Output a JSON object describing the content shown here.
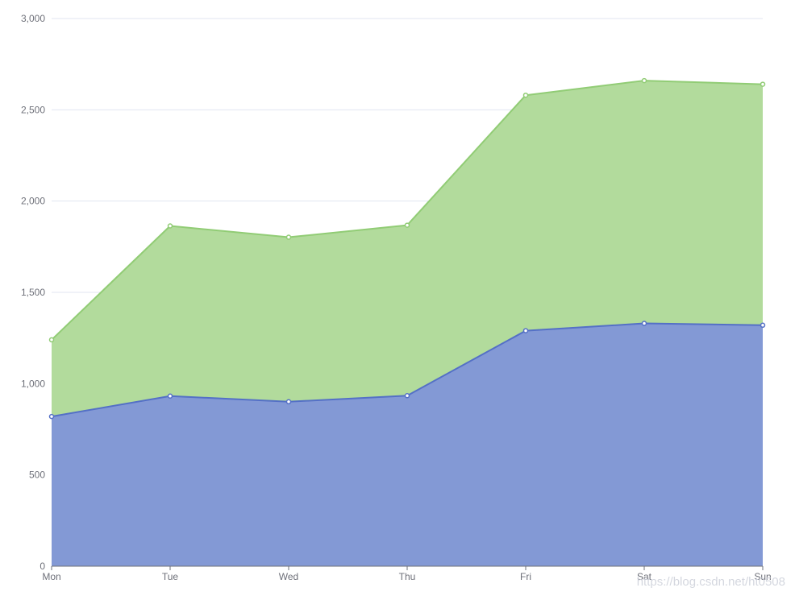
{
  "chart_data": {
    "type": "area",
    "stacked": true,
    "categories": [
      "Mon",
      "Tue",
      "Wed",
      "Thu",
      "Fri",
      "Sat",
      "Sun"
    ],
    "series": [
      {
        "values": [
          820,
          932,
          901,
          934,
          1290,
          1330,
          1320
        ],
        "color": "#5470c6",
        "fill": "#8399d5"
      },
      {
        "values": [
          420,
          932,
          901,
          934,
          1290,
          1330,
          1320
        ],
        "color": "#91cc75",
        "fill": "#b2db9c"
      }
    ],
    "ylim": [
      0,
      3000
    ],
    "yticks": [
      0,
      500,
      1000,
      1500,
      2000,
      2500,
      3000
    ],
    "ytick_labels": [
      "0",
      "500",
      "1,000",
      "1,500",
      "2,000",
      "2,500",
      "3,000"
    ],
    "grid": true,
    "watermark": "https://blog.csdn.net/ht0508"
  }
}
